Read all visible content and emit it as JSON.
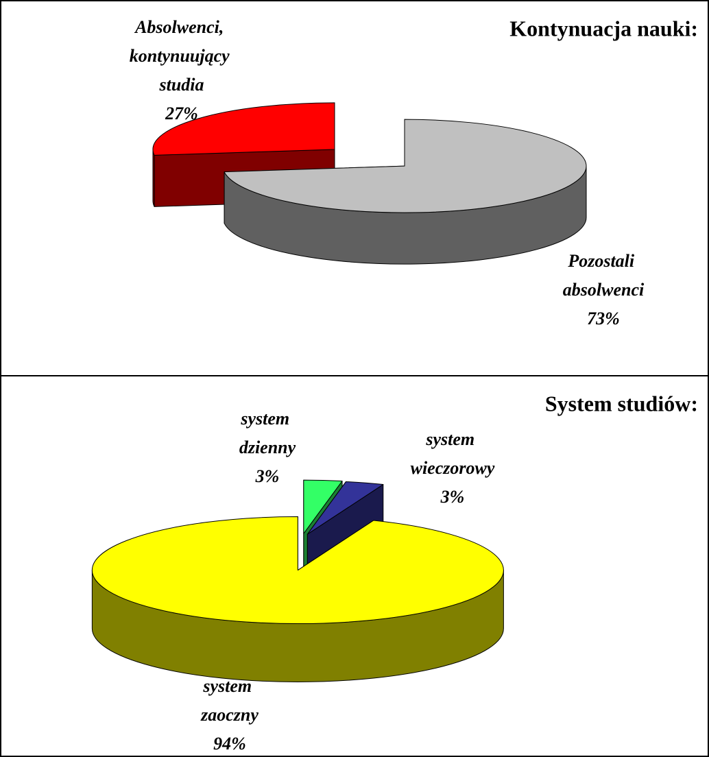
{
  "chart_data": [
    {
      "type": "pie",
      "title": "Kontynuacja nauki:",
      "categories": [
        "Pozostali absolwenci",
        "Absolwenci, kontynuujący studia"
      ],
      "values": [
        73,
        27
      ],
      "value_labels": [
        "73%",
        "27%"
      ],
      "colors": [
        "#c0c0c0",
        "#ff0000"
      ]
    },
    {
      "type": "pie",
      "title": "System studiów:",
      "categories": [
        "system dzienny",
        "system wieczorowy",
        "system zaoczny"
      ],
      "values": [
        3,
        3,
        94
      ],
      "value_labels": [
        "3%",
        "3%",
        "94%"
      ],
      "colors": [
        "#33ff66",
        "#333399",
        "#ffff00"
      ]
    }
  ]
}
